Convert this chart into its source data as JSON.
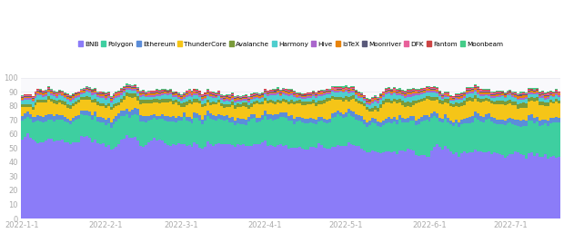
{
  "legend_labels": [
    "BNB",
    "Polygon",
    "Ethereum",
    "ThunderCore",
    "Avalanche",
    "Harmony",
    "Hive",
    "IoTeX",
    "Moonriver",
    "DFK",
    "Fantom",
    "Moonbeam"
  ],
  "colors": [
    "#8b7cf8",
    "#3ecfa0",
    "#5b8dd9",
    "#f5c518",
    "#7a9a3a",
    "#4ecece",
    "#aa66cc",
    "#e8830a",
    "#5a5a7a",
    "#e8609a",
    "#cc4444",
    "#44cc88"
  ],
  "date_labels": [
    "2022-1-1",
    "2022-2-1",
    "2022-3-1",
    "2022-4-1",
    "2022-5-1",
    "2022-6-1",
    "2022-7-1"
  ],
  "date_tick_positions": [
    0,
    31,
    59,
    90,
    120,
    151,
    181
  ],
  "ylim": [
    0,
    100
  ],
  "yticks": [
    0,
    10,
    20,
    30,
    40,
    50,
    60,
    70,
    80,
    90,
    100
  ],
  "n_days": 200,
  "background_color": "#ffffff",
  "plot_bg_color": "#f9f9fc",
  "grid_color": "#e8e8ee"
}
